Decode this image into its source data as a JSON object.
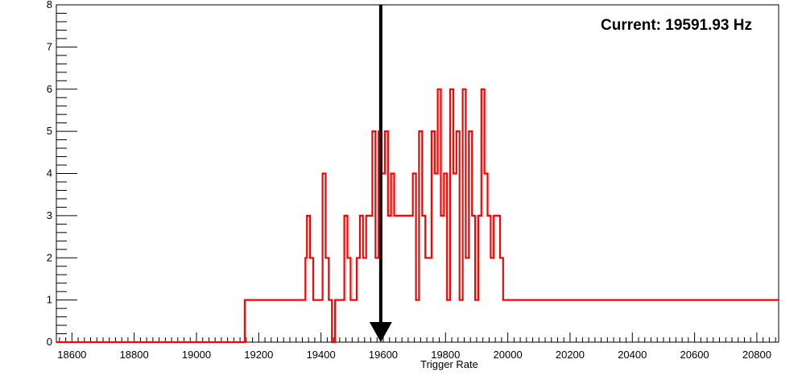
{
  "chart_data": {
    "type": "histogram",
    "title": "",
    "annotation": "Current: 19591.93 Hz",
    "xlabel": "Trigger Rate",
    "ylabel": "",
    "xlim": [
      18550,
      20870
    ],
    "ylim": [
      0,
      8
    ],
    "xticks": [
      18600,
      18800,
      19000,
      19200,
      19400,
      19600,
      19800,
      20000,
      20200,
      20400,
      20600,
      20800
    ],
    "yticks": [
      0,
      1,
      2,
      3,
      4,
      5,
      6,
      7,
      8
    ],
    "grid": false,
    "line_color": "#ff0000",
    "marker_color": "#000000",
    "current_value": 19591.93,
    "series": [
      {
        "x": [
          19155,
          19310,
          19330,
          19350,
          19355,
          19365,
          19375,
          19385,
          19395,
          19405,
          19415,
          19425,
          19435,
          19445,
          19455,
          19465,
          19475,
          19485,
          19495,
          19505,
          19515,
          19525,
          19535,
          19545,
          19555,
          19565,
          19575,
          19585,
          19595,
          19605,
          19615,
          19625,
          19635,
          19645,
          19655,
          19665,
          19675,
          19685,
          19695,
          19705,
          19715,
          19725,
          19735,
          19745,
          19755,
          19765,
          19775,
          19785,
          19795,
          19805,
          19815,
          19825,
          19835,
          19845,
          19855,
          19865,
          19875,
          19885,
          19895,
          19905,
          19915,
          19925,
          19935,
          19945,
          19955,
          19965,
          19975,
          19985,
          19995,
          20005,
          20015
        ],
        "y": [
          1,
          1,
          1,
          2,
          3,
          2,
          1,
          1,
          1,
          4,
          2,
          1,
          0,
          1,
          1,
          1,
          3,
          2,
          1,
          1,
          2,
          3,
          2,
          3,
          3,
          5,
          2,
          5,
          4,
          5,
          3,
          4,
          3,
          3,
          3,
          3,
          3,
          3,
          4,
          1,
          5,
          3,
          2,
          2,
          5,
          4,
          6,
          3,
          4,
          1,
          6,
          4,
          5,
          1,
          6,
          2,
          5,
          3,
          1,
          3,
          6,
          4,
          3,
          2,
          3,
          3,
          2,
          1,
          1,
          1,
          1
        ]
      }
    ]
  }
}
